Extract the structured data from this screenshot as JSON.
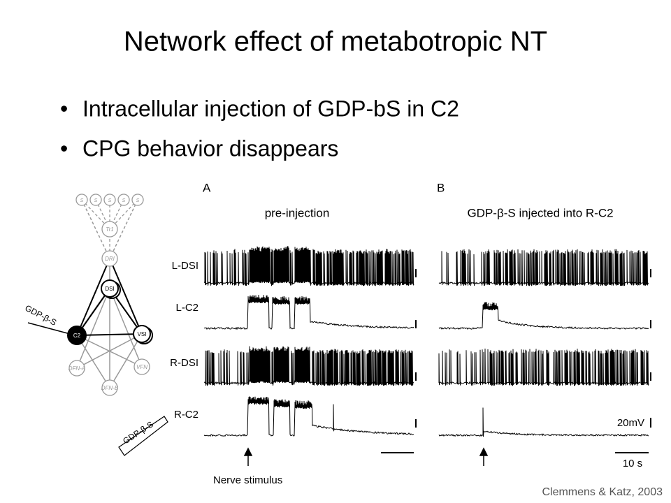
{
  "title": "Network effect of metabotropic NT",
  "bullets": [
    "Intracellular injection of GDP-bS in C2",
    "CPG behavior disappears"
  ],
  "figure": {
    "panels": [
      {
        "label": "A",
        "title": "pre-injection"
      },
      {
        "label": "B",
        "title": "GDP-β-S injected into R-C2"
      }
    ],
    "traces": [
      "L-DSI",
      "L-C2",
      "R-DSI",
      "R-C2"
    ],
    "voltage_scale": "20mV",
    "time_scale": "10 s",
    "stimulus": "Nerve stimulus",
    "circuit": {
      "nodes": [
        "S",
        "S",
        "S",
        "S",
        "S",
        "Tr1",
        "DRI",
        "DSI",
        "C2",
        "VSI",
        "DFN-A",
        "VFN",
        "DFN-B"
      ],
      "drug_labels": [
        "GDP-β-S",
        "GDP-β-S"
      ]
    }
  },
  "citation": "Clemmens & Katz, 2003"
}
